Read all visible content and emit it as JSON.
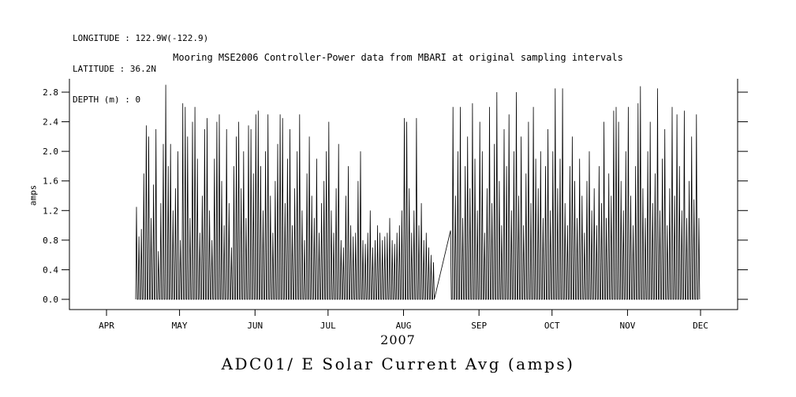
{
  "meta": {
    "longitude_line": "LONGITUDE : 122.9W(-122.9)",
    "latitude_line": "LATITUDE : 36.2N",
    "depth_line": "DEPTH (m) : 0"
  },
  "title": "Mooring MSE2006 Controller-Power data from MBARI at original sampling intervals",
  "bottom_title": "ADC01/ E Solar Current Avg (amps)",
  "chart_data": {
    "type": "line",
    "series_name": "ADC01/ E Solar Current Avg",
    "ylabel": "amps",
    "xlabel_year": "2007",
    "ylim": [
      0.0,
      2.8
    ],
    "y_ticks": [
      0.0,
      0.4,
      0.8,
      1.2,
      1.6,
      2.0,
      2.4,
      2.8
    ],
    "month_labels": [
      "APR",
      "MAY",
      "JUN",
      "JUL",
      "AUG",
      "SEP",
      "OCT",
      "NOV",
      "DEC"
    ],
    "month_day_offsets": [
      0,
      30,
      61,
      91,
      122,
      153,
      183,
      214,
      244
    ],
    "start_day_offset": 12,
    "gap_note": "data gap mid-August, plot connects across gap with straight line",
    "daily_peak_amps": [
      1.25,
      0.85,
      0.95,
      1.7,
      2.35,
      2.2,
      1.1,
      1.55,
      2.3,
      0.65,
      1.3,
      2.1,
      2.9,
      1.8,
      2.1,
      1.2,
      1.5,
      2.0,
      0.8,
      2.65,
      2.6,
      2.2,
      1.1,
      2.4,
      2.6,
      1.9,
      0.9,
      1.4,
      2.3,
      2.45,
      1.2,
      0.8,
      1.9,
      2.4,
      2.5,
      1.6,
      1.0,
      2.3,
      1.3,
      0.7,
      1.8,
      2.2,
      2.4,
      1.5,
      2.0,
      1.1,
      2.35,
      2.3,
      1.7,
      2.5,
      2.55,
      1.8,
      1.2,
      2.0,
      2.5,
      1.4,
      0.9,
      1.6,
      2.1,
      2.5,
      2.45,
      1.3,
      1.9,
      2.3,
      1.0,
      1.5,
      2.0,
      2.5,
      1.2,
      0.8,
      1.7,
      2.2,
      1.4,
      1.1,
      1.9,
      0.9,
      1.3,
      1.6,
      2.0,
      2.4,
      1.2,
      0.9,
      1.5,
      2.1,
      0.8,
      0.7,
      1.4,
      1.8,
      1.0,
      0.85,
      0.9,
      1.6,
      2.0,
      0.8,
      0.75,
      0.9,
      1.2,
      0.7,
      0.8,
      1.0,
      0.9,
      0.8,
      0.85,
      0.9,
      1.1,
      0.8,
      0.75,
      0.9,
      1.0,
      1.2,
      2.45,
      2.4,
      1.5,
      0.9,
      1.2,
      2.45,
      1.0,
      1.3,
      0.8,
      0.9,
      0.7,
      0.6,
      0.5,
      null,
      null,
      null,
      null,
      null,
      null,
      0.93,
      2.6,
      1.4,
      2.0,
      2.6,
      1.1,
      1.8,
      2.2,
      1.5,
      2.65,
      1.9,
      1.2,
      2.4,
      2.0,
      0.9,
      1.5,
      2.6,
      1.3,
      2.1,
      2.8,
      1.6,
      1.0,
      2.3,
      1.8,
      2.5,
      1.2,
      2.0,
      2.8,
      1.4,
      2.2,
      1.0,
      1.7,
      2.4,
      1.3,
      2.6,
      1.9,
      1.5,
      2.0,
      1.1,
      1.8,
      2.3,
      1.2,
      2.0,
      2.85,
      1.5,
      1.9,
      2.85,
      1.3,
      1.0,
      1.8,
      2.2,
      1.6,
      1.1,
      1.9,
      1.4,
      0.9,
      1.6,
      2.0,
      1.2,
      1.5,
      1.0,
      1.8,
      1.3,
      2.4,
      1.1,
      1.7,
      1.4,
      2.55,
      2.6,
      2.4,
      1.6,
      1.2,
      2.0,
      2.6,
      1.4,
      1.0,
      1.8,
      2.65,
      2.88,
      1.5,
      1.1,
      2.0,
      2.4,
      1.3,
      1.7,
      2.85,
      1.2,
      1.9,
      2.3,
      1.0,
      1.5,
      2.6,
      1.4,
      2.5,
      1.8,
      1.2,
      2.55,
      1.1,
      1.6,
      2.2,
      1.35,
      2.5,
      1.1
    ]
  }
}
